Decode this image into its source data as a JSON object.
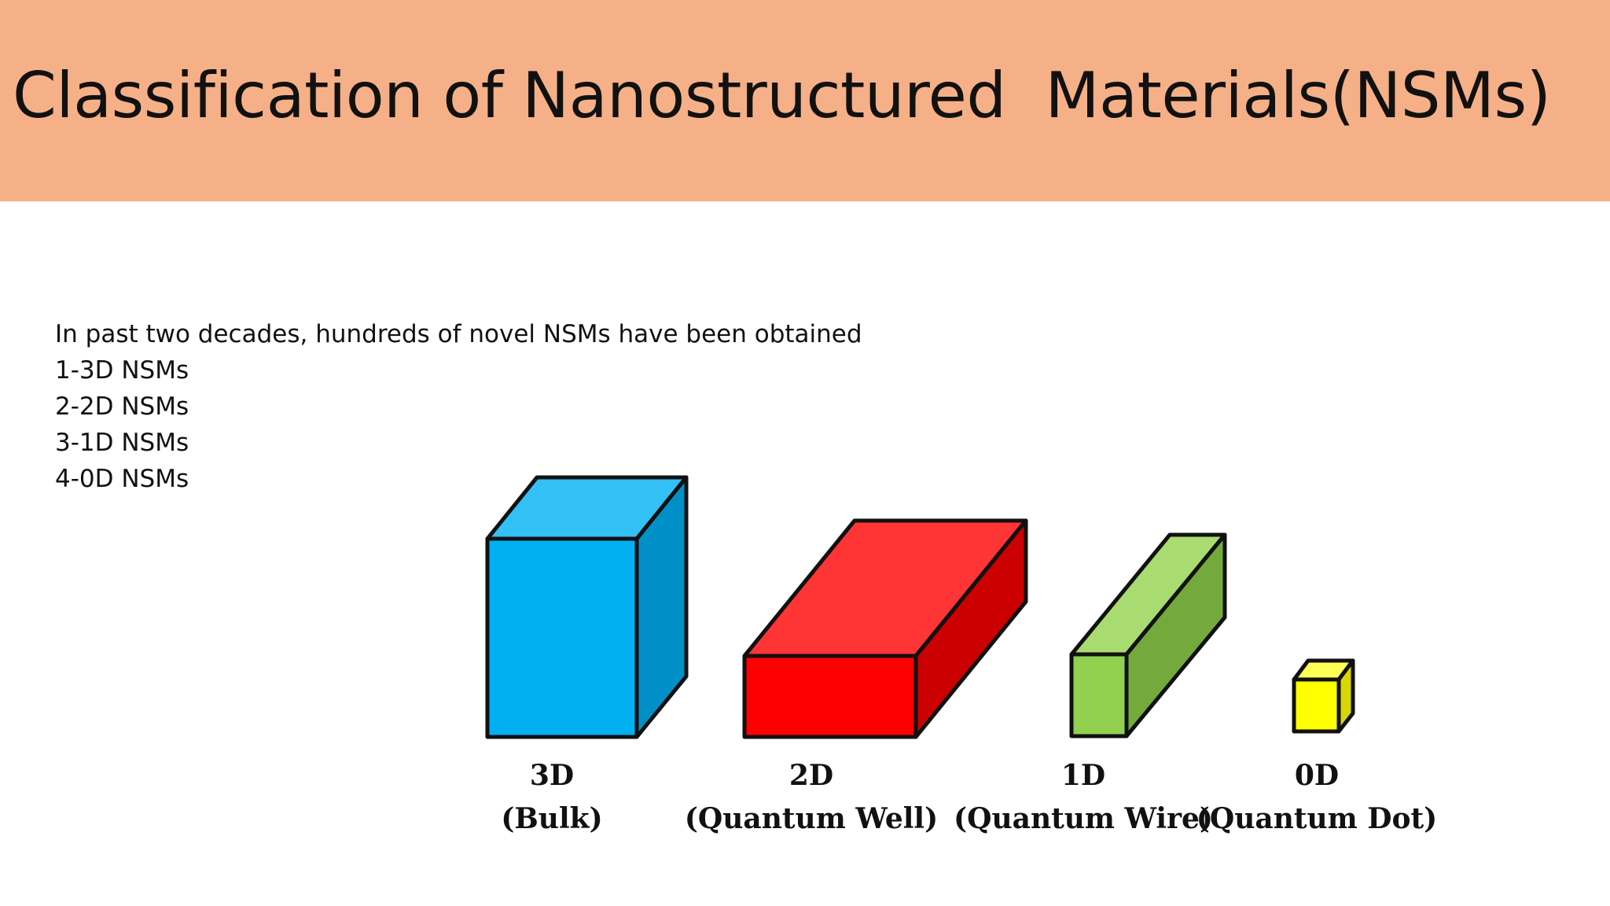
{
  "slide": {
    "title": "Classification of Nanostructured  Materials(NSMs)",
    "intro": "In past two decades, hundreds of novel NSMs have been obtained",
    "list": [
      "1-3D NSMs",
      "2-2D NSMs",
      "3-1D NSMs",
      "4-0D NSMs"
    ]
  },
  "colors": {
    "header_background": "#f5b088",
    "bulk_front": "#00b0f0",
    "bulk_top": "#33c0f5",
    "bulk_side": "#0090c8",
    "well_front": "#ff0000",
    "well_top": "#ff3535",
    "well_side": "#cc0000",
    "wire_front": "#92d050",
    "wire_top": "#a8dc70",
    "wire_side": "#74aa3c",
    "dot_front": "#ffff00",
    "dot_top": "#ffff55",
    "dot_side": "#d8d800"
  },
  "diagram": {
    "items": [
      {
        "dimension": "3D",
        "name": "(Bulk)"
      },
      {
        "dimension": "2D",
        "name": "(Quantum Well)"
      },
      {
        "dimension": "1D",
        "name": "(Quantum Wire)"
      },
      {
        "dimension": "0D",
        "name": "(Quantum Dot)"
      }
    ]
  }
}
